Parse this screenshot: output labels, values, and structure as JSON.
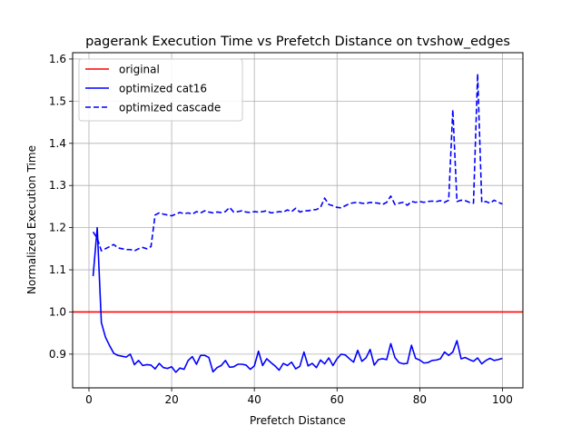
{
  "chart_data": {
    "type": "line",
    "title": "pagerank Execution Time vs Prefetch Distance on tvshow_edges",
    "xlabel": "Prefetch Distance",
    "ylabel": "Normalized Execution Time",
    "xlim": [
      -3.95,
      104.95
    ],
    "ylim": [
      0.82,
      1.615
    ],
    "xticks": [
      0,
      20,
      40,
      60,
      80,
      100
    ],
    "yticks": [
      0.9,
      1.0,
      1.1,
      1.2,
      1.3,
      1.4,
      1.5,
      1.6
    ],
    "ytick_labels": [
      "0.9",
      "1.0",
      "1.1",
      "1.2",
      "1.3",
      "1.4",
      "1.5",
      "1.6"
    ],
    "grid": true,
    "legend": "top-left",
    "x": [
      1,
      2,
      3,
      4,
      5,
      6,
      7,
      8,
      9,
      10,
      11,
      12,
      13,
      14,
      15,
      16,
      17,
      18,
      19,
      20,
      21,
      22,
      23,
      24,
      25,
      26,
      27,
      28,
      29,
      30,
      31,
      32,
      33,
      34,
      35,
      36,
      37,
      38,
      39,
      40,
      41,
      42,
      43,
      44,
      45,
      46,
      47,
      48,
      49,
      50,
      51,
      52,
      53,
      54,
      55,
      56,
      57,
      58,
      59,
      60,
      61,
      62,
      63,
      64,
      65,
      66,
      67,
      68,
      69,
      70,
      71,
      72,
      73,
      74,
      75,
      76,
      77,
      78,
      79,
      80,
      81,
      82,
      83,
      84,
      85,
      86,
      87,
      88,
      89,
      90,
      91,
      92,
      93,
      94,
      95,
      96,
      97,
      98,
      99,
      100
    ],
    "series": [
      {
        "name": "original",
        "color": "#ff0000",
        "style": "solid",
        "values": [
          1.0,
          1.0,
          1.0,
          1.0,
          1.0,
          1.0,
          1.0,
          1.0,
          1.0,
          1.0,
          1.0,
          1.0,
          1.0,
          1.0,
          1.0,
          1.0,
          1.0,
          1.0,
          1.0,
          1.0,
          1.0,
          1.0,
          1.0,
          1.0,
          1.0,
          1.0,
          1.0,
          1.0,
          1.0,
          1.0,
          1.0,
          1.0,
          1.0,
          1.0,
          1.0,
          1.0,
          1.0,
          1.0,
          1.0,
          1.0,
          1.0,
          1.0,
          1.0,
          1.0,
          1.0,
          1.0,
          1.0,
          1.0,
          1.0,
          1.0,
          1.0,
          1.0,
          1.0,
          1.0,
          1.0,
          1.0,
          1.0,
          1.0,
          1.0,
          1.0,
          1.0,
          1.0,
          1.0,
          1.0,
          1.0,
          1.0,
          1.0,
          1.0,
          1.0,
          1.0,
          1.0,
          1.0,
          1.0,
          1.0,
          1.0,
          1.0,
          1.0,
          1.0,
          1.0,
          1.0,
          1.0,
          1.0,
          1.0,
          1.0,
          1.0,
          1.0,
          1.0,
          1.0,
          1.0,
          1.0,
          1.0,
          1.0,
          1.0,
          1.0,
          1.0,
          1.0,
          1.0,
          1.0,
          1.0,
          1.0
        ]
      },
      {
        "name": "optimized cat16",
        "color": "#0000ff",
        "style": "solid",
        "values": [
          1.085,
          1.2,
          0.975,
          0.94,
          0.92,
          0.902,
          0.897,
          0.895,
          0.893,
          0.9,
          0.875,
          0.885,
          0.873,
          0.875,
          0.874,
          0.865,
          0.878,
          0.868,
          0.866,
          0.87,
          0.857,
          0.867,
          0.864,
          0.885,
          0.894,
          0.876,
          0.897,
          0.897,
          0.892,
          0.858,
          0.868,
          0.873,
          0.885,
          0.869,
          0.87,
          0.876,
          0.876,
          0.874,
          0.864,
          0.872,
          0.907,
          0.873,
          0.889,
          0.88,
          0.872,
          0.862,
          0.878,
          0.873,
          0.881,
          0.865,
          0.871,
          0.905,
          0.872,
          0.878,
          0.868,
          0.886,
          0.877,
          0.891,
          0.873,
          0.889,
          0.9,
          0.898,
          0.889,
          0.881,
          0.909,
          0.883,
          0.891,
          0.911,
          0.874,
          0.887,
          0.889,
          0.887,
          0.925,
          0.892,
          0.88,
          0.877,
          0.878,
          0.921,
          0.89,
          0.886,
          0.879,
          0.88,
          0.885,
          0.886,
          0.889,
          0.905,
          0.897,
          0.905,
          0.932,
          0.889,
          0.892,
          0.887,
          0.883,
          0.891,
          0.877,
          0.885,
          0.89,
          0.885,
          0.887,
          0.89
        ]
      },
      {
        "name": "optimized cascade",
        "color": "#0000ff",
        "style": "dashed",
        "values": [
          1.19,
          1.175,
          1.145,
          1.15,
          1.155,
          1.16,
          1.152,
          1.15,
          1.148,
          1.148,
          1.145,
          1.15,
          1.153,
          1.15,
          1.155,
          1.23,
          1.235,
          1.232,
          1.23,
          1.228,
          1.232,
          1.236,
          1.233,
          1.235,
          1.232,
          1.238,
          1.235,
          1.24,
          1.237,
          1.235,
          1.237,
          1.236,
          1.238,
          1.248,
          1.237,
          1.238,
          1.24,
          1.237,
          1.236,
          1.238,
          1.237,
          1.238,
          1.24,
          1.235,
          1.236,
          1.238,
          1.237,
          1.242,
          1.238,
          1.246,
          1.237,
          1.24,
          1.24,
          1.242,
          1.243,
          1.248,
          1.27,
          1.255,
          1.252,
          1.248,
          1.247,
          1.252,
          1.257,
          1.259,
          1.26,
          1.258,
          1.257,
          1.26,
          1.259,
          1.258,
          1.255,
          1.26,
          1.275,
          1.255,
          1.258,
          1.26,
          1.253,
          1.262,
          1.26,
          1.262,
          1.26,
          1.262,
          1.263,
          1.262,
          1.264,
          1.26,
          1.265,
          1.48,
          1.262,
          1.265,
          1.264,
          1.26,
          1.258,
          1.565,
          1.26,
          1.262,
          1.258,
          1.265,
          1.26,
          1.256
        ]
      }
    ]
  }
}
